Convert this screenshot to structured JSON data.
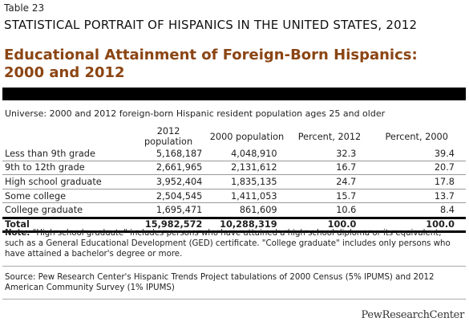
{
  "header": {
    "table_label": "Table 23",
    "super_title": "STATISTICAL PORTRAIT OF HISPANICS IN THE UNITED STATES, 2012",
    "title": "Educational Attainment of Foreign-Born Hispanics: 2000 and 2012"
  },
  "universe": "Universe: 2000 and 2012 foreign-born Hispanic resident population ages 25 and older",
  "table": {
    "columns": [
      "",
      "2012 population",
      "2000 population",
      "Percent, 2012",
      "Percent, 2000"
    ],
    "rows": [
      [
        "Less than 9th grade",
        "5,168,187",
        "4,048,910",
        "32.3",
        "39.4"
      ],
      [
        "9th to 12th grade",
        "2,661,965",
        "2,131,612",
        "16.7",
        "20.7"
      ],
      [
        "High school graduate",
        "3,952,404",
        "1,835,135",
        "24.7",
        "17.8"
      ],
      [
        "Some college",
        "2,504,545",
        "1,411,053",
        "15.7",
        "13.7"
      ],
      [
        "College graduate",
        "1,695,471",
        "861,609",
        "10.6",
        "8.4"
      ]
    ],
    "total": [
      "Total",
      "15,982,572",
      "10,288,319",
      "100.0",
      "100.0"
    ]
  },
  "note": {
    "label": "Note:",
    "text": " \"High school graduate\" includes persons who have attained a high school diploma or its equivalent, such as a General Educational Development (GED) certificate. \"College graduate\" includes only persons who have attained a bachelor's degree or more."
  },
  "source": "Source: Pew Research Center's Hispanic Trends Project tabulations of 2000 Census (5% IPUMS) and 2012 American Community Survey (1% IPUMS)",
  "logo": "PewResearchCenter"
}
